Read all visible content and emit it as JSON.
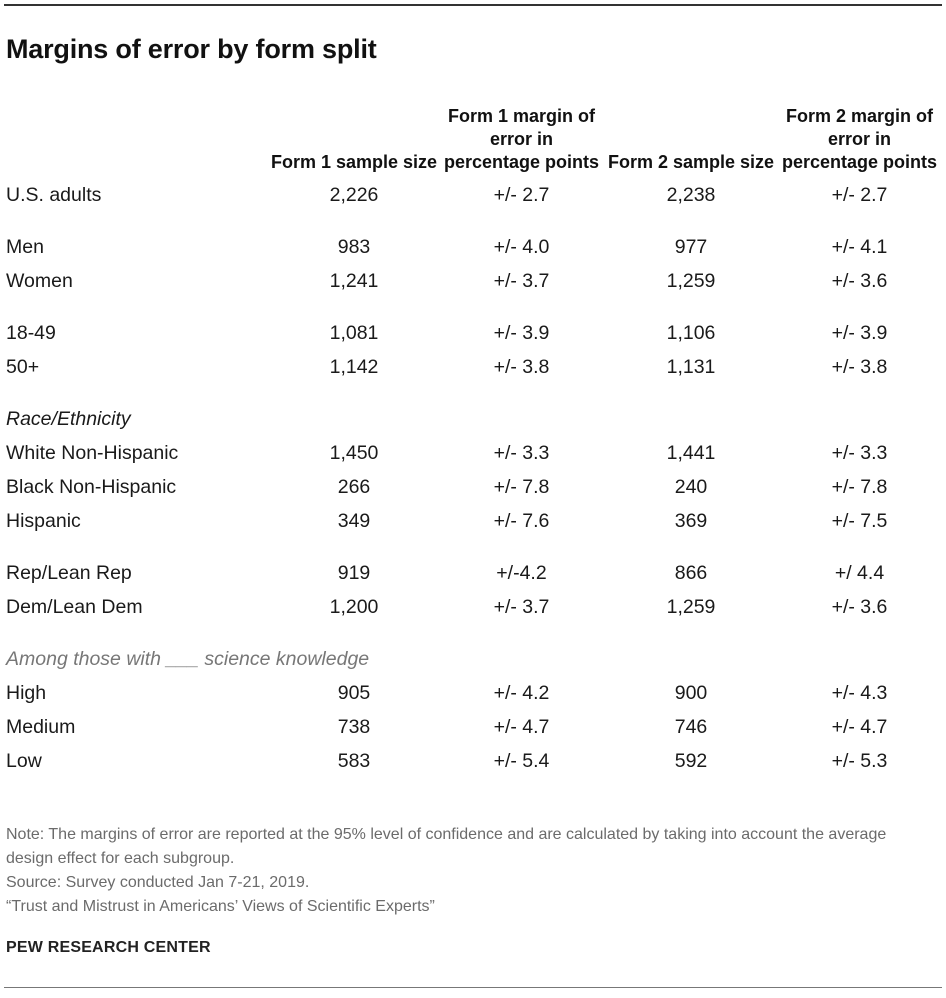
{
  "title": "Margins of error by form split",
  "columns": {
    "form1_size": "Form 1 sample size",
    "form1_moe": "Form 1 margin of error in percentage points",
    "form2_size": "Form 2 sample size",
    "form2_moe": "Form 2 margin of error in percentage points"
  },
  "rows": [
    {
      "label": "U.S. adults",
      "f1n": "2,226",
      "f1m": "+/- 2.7",
      "f2n": "2,238",
      "f2m": "+/- 2.7"
    },
    {
      "label": "Men",
      "f1n": "983",
      "f1m": "+/- 4.0",
      "f2n": "977",
      "f2m": "+/- 4.1"
    },
    {
      "label": "Women",
      "f1n": "1,241",
      "f1m": "+/- 3.7",
      "f2n": "1,259",
      "f2m": "+/- 3.6"
    },
    {
      "label": "18-49",
      "f1n": "1,081",
      "f1m": "+/- 3.9",
      "f2n": "1,106",
      "f2m": "+/- 3.9"
    },
    {
      "label": "50+",
      "f1n": "1,142",
      "f1m": "+/- 3.8",
      "f2n": "1,131",
      "f2m": "+/- 3.8"
    },
    {
      "label": "White Non-Hispanic",
      "f1n": "1,450",
      "f1m": "+/- 3.3",
      "f2n": "1,441",
      "f2m": "+/- 3.3"
    },
    {
      "label": "Black Non-Hispanic",
      "f1n": "266",
      "f1m": "+/- 7.8",
      "f2n": "240",
      "f2m": "+/- 7.8"
    },
    {
      "label": "Hispanic",
      "f1n": "349",
      "f1m": "+/- 7.6",
      "f2n": "369",
      "f2m": "+/- 7.5"
    },
    {
      "label": "Rep/Lean Rep",
      "f1n": "919",
      "f1m": "+/-4.2",
      "f2n": "866",
      "f2m": "+/ 4.4"
    },
    {
      "label": "Dem/Lean Dem",
      "f1n": "1,200",
      "f1m": "+/- 3.7",
      "f2n": "1,259",
      "f2m": "+/- 3.6"
    },
    {
      "label": "High",
      "f1n": "905",
      "f1m": "+/- 4.2",
      "f2n": "900",
      "f2m": "+/- 4.3"
    },
    {
      "label": "Medium",
      "f1n": "738",
      "f1m": "+/- 4.7",
      "f2n": "746",
      "f2m": "+/- 4.7"
    },
    {
      "label": "Low",
      "f1n": "583",
      "f1m": "+/- 5.4",
      "f2n": "592",
      "f2m": "+/- 5.3"
    }
  ],
  "sections": {
    "race": "Race/Ethnicity",
    "science": "Among those with ___ science knowledge"
  },
  "notes": {
    "note": "Note: The margins of error are reported at the 95% level of confidence and are calculated by taking into account the average design effect for each subgroup.",
    "source": "Source: Survey conducted Jan 7-21, 2019.",
    "report": "“Trust and Mistrust in Americans’ Views of Scientific Experts”"
  },
  "org": "PEW RESEARCH CENTER"
}
